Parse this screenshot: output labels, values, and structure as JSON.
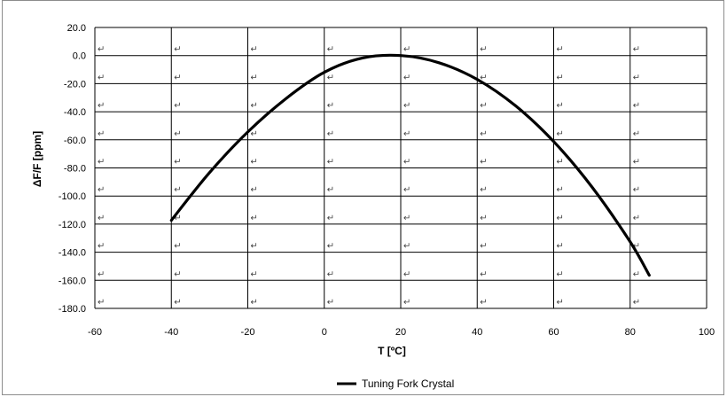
{
  "chart_data": {
    "type": "line",
    "title": "",
    "xlabel": "T [ºC]",
    "ylabel": "ΔF/F  [ppm]",
    "xlim": [
      -60,
      100
    ],
    "ylim": [
      -180,
      20
    ],
    "x_ticks": [
      "-60",
      "-40",
      "-20",
      "0",
      "20",
      "40",
      "60",
      "80",
      "100"
    ],
    "y_ticks": [
      "20.0",
      "0.0",
      "-20.0",
      "-40.0",
      "-60.0",
      "-80.0",
      "-100.0",
      "-120.0",
      "-140.0",
      "-160.0",
      "-180.0"
    ],
    "grid": true,
    "legend_position": "bottom-center",
    "series": [
      {
        "name": "Tuning Fork Crystal",
        "color": "#000000",
        "x": [
          -40,
          -30,
          -20,
          -10,
          0,
          10,
          20,
          30,
          40,
          50,
          60,
          70,
          80,
          85
        ],
        "y": [
          -117.3,
          -83.3,
          -54.4,
          -30.6,
          -11.9,
          -1.7,
          0.0,
          -5.1,
          -17.0,
          -35.7,
          -61.2,
          -93.5,
          -132.6,
          -156.4
        ]
      }
    ]
  }
}
